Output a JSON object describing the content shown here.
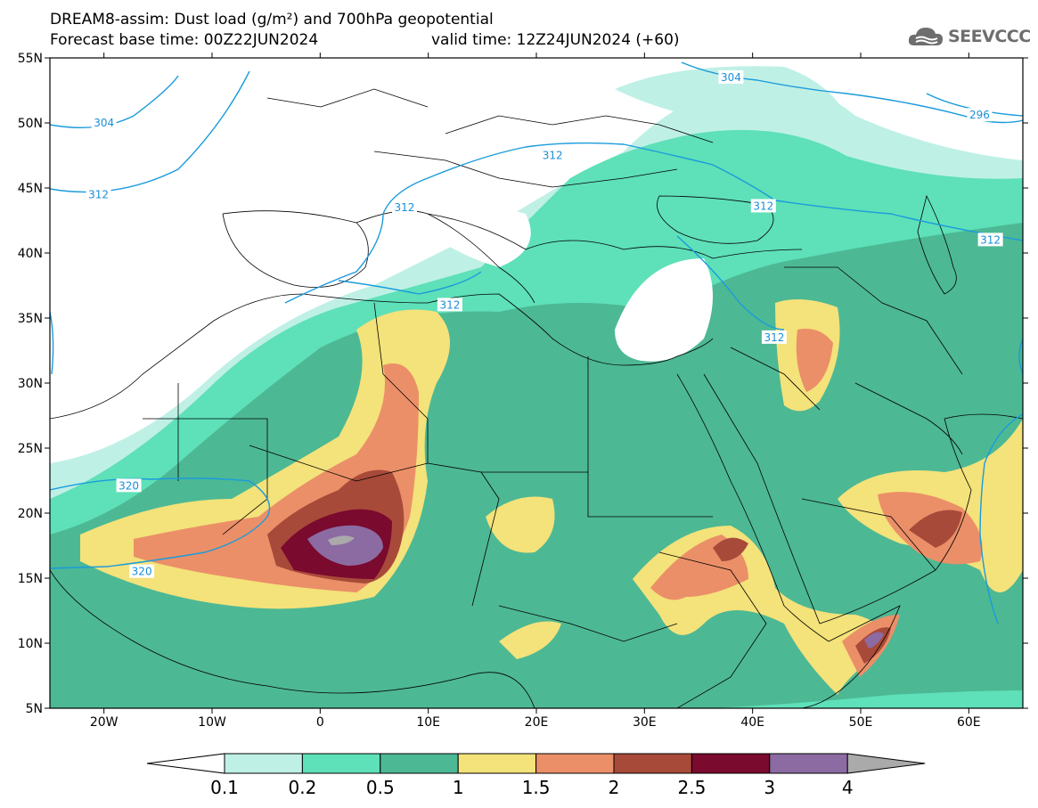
{
  "header": {
    "title_line1": "DREAM8-assim: Dust load (g/m²) and 700hPa geopotential",
    "title_line2": "Forecast base time: 00Z22JUN2024",
    "valid_time": "valid time: 12Z24JUN2024 (+60)",
    "logo_text": "SEEVCCC",
    "logo_icon": "cloud-icon"
  },
  "map": {
    "variable": "Dust load",
    "unit": "g/m²",
    "overlay": "700hPa geopotential",
    "lon_range": [
      -25,
      65
    ],
    "lat_range": [
      5,
      55
    ],
    "lat_ticks": [
      "55N",
      "50N",
      "45N",
      "40N",
      "35N",
      "30N",
      "25N",
      "20N",
      "15N",
      "10N",
      "5N"
    ],
    "lon_ticks": [
      "20W",
      "10W",
      "0",
      "10E",
      "20E",
      "30E",
      "40E",
      "50E",
      "60E"
    ],
    "contour_labels": [
      {
        "text": "304",
        "lon": -20,
        "lat": 50
      },
      {
        "text": "312",
        "lon": -20.5,
        "lat": 44.5
      },
      {
        "text": "312",
        "lon": 12,
        "lat": 36
      },
      {
        "text": "312",
        "lon": 7.8,
        "lat": 43.5
      },
      {
        "text": "312",
        "lon": 21.5,
        "lat": 47.5
      },
      {
        "text": "312",
        "lon": 41,
        "lat": 43.6
      },
      {
        "text": "312",
        "lon": 42,
        "lat": 33.5
      },
      {
        "text": "312",
        "lon": 62,
        "lat": 41
      },
      {
        "text": "304",
        "lon": 38,
        "lat": 53.5
      },
      {
        "text": "296",
        "lon": 61,
        "lat": 50.6
      },
      {
        "text": "320",
        "lon": -17.7,
        "lat": 22.1
      },
      {
        "text": "320",
        "lon": -16.5,
        "lat": 15.5
      }
    ]
  },
  "colorbar": {
    "labels": [
      "0.1",
      "0.2",
      "0.5",
      "1",
      "1.5",
      "2",
      "2.5",
      "3",
      "4"
    ],
    "colors": [
      "#bff0e6",
      "#5ee0b8",
      "#4db894",
      "#f4e27a",
      "#eb8f68",
      "#a84a3a",
      "#7a0a2e",
      "#8c6ba2",
      "#aaaaaa"
    ]
  }
}
